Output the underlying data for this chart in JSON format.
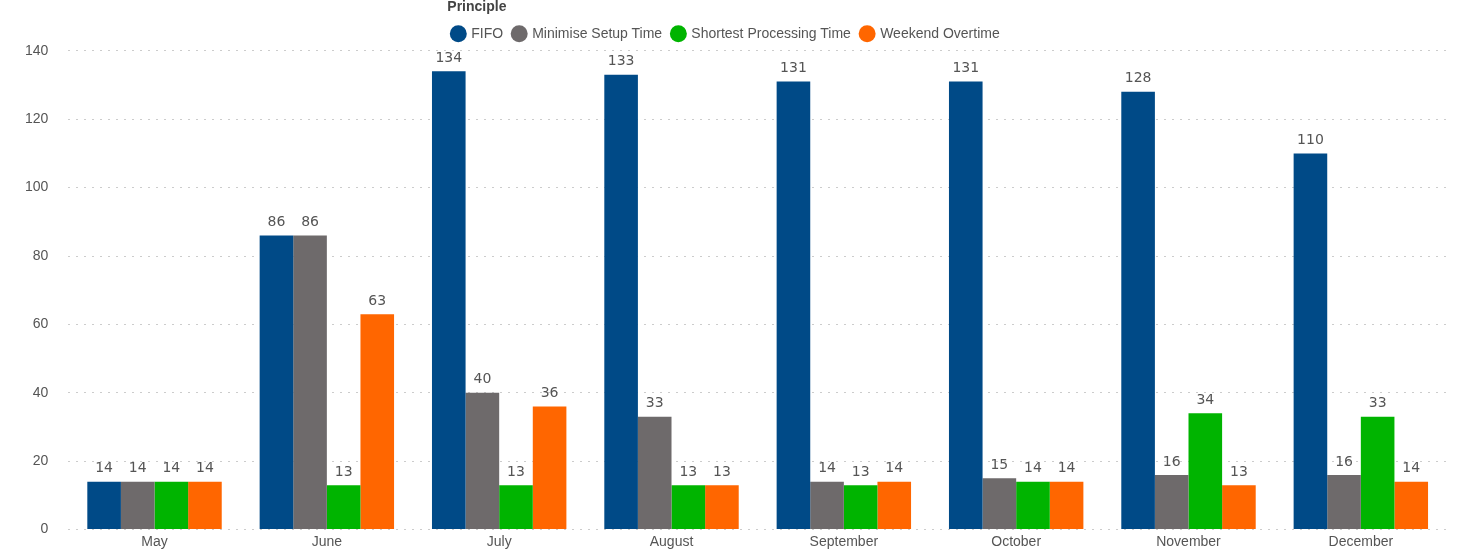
{
  "chart_data": {
    "type": "bar",
    "legend_title": "Principle",
    "legend": "top",
    "grid": "y",
    "data_labels": true,
    "categories": [
      "May",
      "June",
      "July",
      "August",
      "September",
      "October",
      "November",
      "December"
    ],
    "series": [
      {
        "name": "FIFO",
        "color": "#004a87",
        "values": [
          14,
          86,
          134,
          133,
          131,
          131,
          128,
          110
        ]
      },
      {
        "name": "Minimise Setup Time",
        "color": "#6e6a6b",
        "values": [
          14,
          86,
          40,
          33,
          14,
          15,
          16,
          16
        ]
      },
      {
        "name": "Shortest Processing Time",
        "color": "#00b400",
        "values": [
          14,
          13,
          13,
          13,
          13,
          14,
          34,
          33
        ]
      },
      {
        "name": "Weekend Overtime",
        "color": "#ff6600",
        "values": [
          14,
          63,
          36,
          13,
          14,
          14,
          13,
          14
        ]
      }
    ],
    "ylim": [
      0,
      140
    ],
    "yticks": [
      0,
      20,
      40,
      60,
      80,
      100,
      120,
      140
    ]
  }
}
